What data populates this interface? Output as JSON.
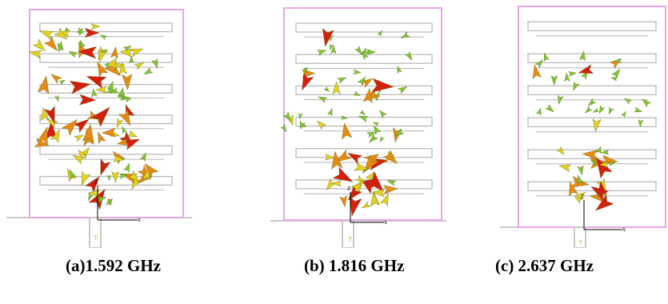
{
  "figure": {
    "panels": [
      {
        "id": "a",
        "caption": "(a)1.592 GHz",
        "axis_x": "x",
        "axis_y": "Z",
        "feed_label": "y"
      },
      {
        "id": "b",
        "caption": "(b) 1.816 GHz",
        "axis_x": "x",
        "axis_y": "Z",
        "feed_label": "y"
      },
      {
        "id": "c",
        "caption": "(c) 2.637 GHz",
        "axis_x": "x",
        "axis_y": "Z",
        "feed_label": "y"
      }
    ]
  },
  "colors": {
    "substrate_border": "#e8a6e6",
    "meander": "#b5b5b5",
    "arrow_green": "#7cc82e",
    "arrow_yellow": "#e6d21c",
    "arrow_orange": "#e88a12",
    "arrow_red": "#d41f0d",
    "ground": "#c8c8c8"
  }
}
